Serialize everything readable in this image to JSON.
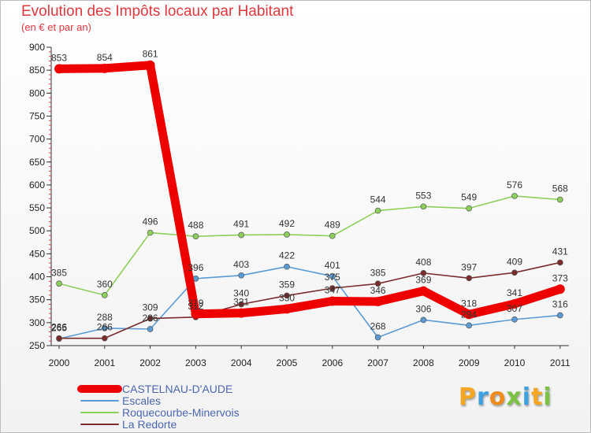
{
  "title": "Evolution des Impôts locaux par Habitant",
  "subtitle": "(en € et par an)",
  "logo": {
    "text": "Proxiti",
    "colors": [
      "#f5a623",
      "#3fa0e0",
      "#f08a1c",
      "#7cc242",
      "#3fa0e0",
      "#f5a623",
      "#7cc242"
    ]
  },
  "chart_data": {
    "type": "line",
    "title": "Evolution des Impôts locaux par Habitant",
    "subtitle": "(en € et par an)",
    "xlabel": "",
    "ylabel": "",
    "categories": [
      "2000",
      "2001",
      "2002",
      "2003",
      "2004",
      "2005",
      "2006",
      "2007",
      "2008",
      "2009",
      "2010",
      "2011"
    ],
    "ylim": [
      250,
      900
    ],
    "yticks": [
      250,
      300,
      350,
      400,
      450,
      500,
      550,
      600,
      650,
      700,
      750,
      800,
      850,
      900
    ],
    "grid": false,
    "legend": "bottom-left",
    "series": [
      {
        "name": "Escales",
        "color": "#5b9bd5",
        "values": [
          265,
          288,
          286,
          396,
          403,
          422,
          401,
          268,
          306,
          294,
          307,
          316
        ],
        "labels": [
          "265",
          "288",
          "286",
          "396",
          "403",
          "422",
          "401",
          "268",
          "306",
          "294",
          "307",
          "316"
        ]
      },
      {
        "name": "Roquecourbe-Minervois",
        "color": "#8ccf5a",
        "values": [
          385,
          360,
          496,
          488,
          491,
          492,
          489,
          544,
          553,
          549,
          576,
          568
        ],
        "labels": [
          "385",
          "360",
          "496",
          "488",
          "491",
          "492",
          "489",
          "544",
          "553",
          "549",
          "576",
          "568"
        ]
      },
      {
        "name": "La Redorte",
        "color": "#7b2c2c",
        "values": [
          266,
          266,
          309,
          312,
          340,
          359,
          375,
          385,
          408,
          397,
          409,
          431
        ],
        "labels": [
          "266",
          "266",
          "309",
          "312",
          "340",
          "359",
          "375",
          "385",
          "408",
          "397",
          "409",
          "431"
        ]
      },
      {
        "name": "CASTELNAU-D'AUDE",
        "color": "#ee0000",
        "values": [
          853,
          854,
          861,
          319,
          321,
          330,
          347,
          346,
          369,
          318,
          341,
          373
        ],
        "labels": [
          "853",
          "854",
          "861",
          "319",
          "321",
          "330",
          "347",
          "346",
          "369",
          "318",
          "341",
          "373"
        ]
      }
    ],
    "legend_order": [
      "CASTELNAU-D'AUDE",
      "Escales",
      "Roquecourbe-Minervois",
      "La Redorte"
    ]
  }
}
